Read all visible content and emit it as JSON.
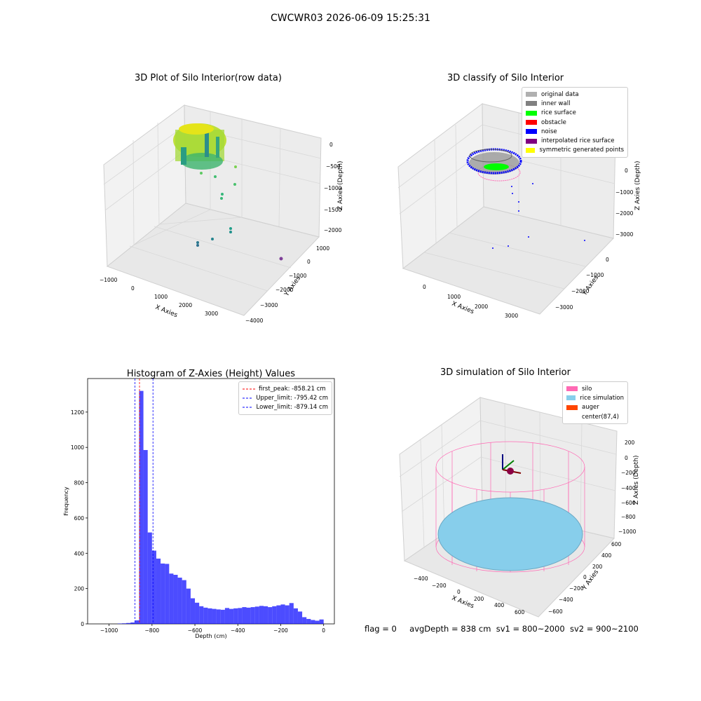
{
  "suptitle": "CWCWR03 2026-06-09 15:25:31",
  "panels": {
    "raw": {
      "title": "3D Plot of Silo Interior(row data)",
      "xlabel": "X Axies",
      "ylabel": "Y Axies",
      "zlabel": "Z Axies (Depth)",
      "xticks": [
        "−1000",
        "0",
        "1000",
        "2000",
        "3000"
      ],
      "yticks": [
        "1000",
        "0",
        "−1000",
        "−2000",
        "−3000",
        "−4000"
      ],
      "zticks": [
        "0",
        "−500",
        "−1000",
        "−1500",
        "−2000"
      ]
    },
    "classify": {
      "title": "3D classify of Silo Interior",
      "xlabel": "X Axies",
      "ylabel": "Y Axies",
      "zlabel": "Z Axies (Depth)",
      "xticks": [
        "0",
        "1000",
        "2000",
        "3000"
      ],
      "yticks": [
        "0",
        "−1000",
        "−2000",
        "−3000"
      ],
      "zticks": [
        "0",
        "−1000",
        "−2000",
        "−3000"
      ],
      "legend": [
        {
          "label": "original data",
          "color": "#b0b0b0"
        },
        {
          "label": "inner wall",
          "color": "#808080"
        },
        {
          "label": "rice surface",
          "color": "#00ff00"
        },
        {
          "label": "obstacle",
          "color": "#ff0000"
        },
        {
          "label": "noise",
          "color": "#0000ff"
        },
        {
          "label": "interpolated rice surface",
          "color": "#800080"
        },
        {
          "label": "symmetric generated points",
          "color": "#ffff00"
        }
      ]
    },
    "simulation": {
      "title": "3D simulation of Silo Interior",
      "xlabel": "X Axies",
      "ylabel": "Y Axies",
      "zlabel": "Z Axies (Depth)",
      "xticks": [
        "−400",
        "−200",
        "0",
        "200",
        "400",
        "600"
      ],
      "yticks": [
        "600",
        "400",
        "200",
        "0",
        "−200",
        "−400",
        "−600"
      ],
      "zticks": [
        "200",
        "0",
        "−200",
        "−400",
        "−600",
        "−800",
        "−1000"
      ],
      "legend": [
        {
          "label": "silo",
          "color": "#ff69b4"
        },
        {
          "label": "rice simulation",
          "color": "#87ceeb"
        },
        {
          "label": "auger",
          "color": "#ff4500"
        },
        {
          "label": "center(87,4)",
          "color": ""
        }
      ]
    }
  },
  "chart_data": {
    "type": "bar",
    "title": "Histogram of Z-Axies (Height) Values",
    "xlabel": "Depth (cm)",
    "ylabel": "Frequency",
    "xlim": [
      -1100,
      50
    ],
    "ylim": [
      0,
      1390
    ],
    "xticks": [
      -1000,
      -800,
      -600,
      -400,
      -200,
      0
    ],
    "yticks": [
      0,
      200,
      400,
      600,
      800,
      1000,
      1200
    ],
    "bin_width": 20,
    "bins_start": [
      -960,
      -940,
      -920,
      -900,
      -880,
      -860,
      -840,
      -820,
      -800,
      -780,
      -760,
      -740,
      -720,
      -700,
      -680,
      -660,
      -640,
      -620,
      -600,
      -580,
      -560,
      -540,
      -520,
      -500,
      -480,
      -460,
      -440,
      -420,
      -400,
      -380,
      -360,
      -340,
      -320,
      -300,
      -280,
      -260,
      -240,
      -220,
      -200,
      -180,
      -160,
      -140,
      -120,
      -100,
      -80,
      -60,
      -40,
      -20
    ],
    "values": [
      2,
      3,
      5,
      8,
      20,
      1320,
      985,
      518,
      415,
      370,
      342,
      340,
      285,
      278,
      262,
      248,
      200,
      145,
      120,
      100,
      92,
      88,
      85,
      82,
      80,
      90,
      85,
      88,
      90,
      95,
      92,
      95,
      98,
      102,
      100,
      95,
      100,
      105,
      110,
      105,
      118,
      88,
      70,
      38,
      28,
      22,
      18,
      25
    ],
    "vlines": [
      {
        "label": "first_peak: -858.21 cm",
        "x": -858.21,
        "color": "#ff0000"
      },
      {
        "label": "Upper_limit: -795.42 cm",
        "x": -795.42,
        "color": "#0000ff"
      },
      {
        "label": "Lower_limit: -879.14 cm",
        "x": -879.14,
        "color": "#0000ff"
      }
    ]
  },
  "status": {
    "flag": "flag = 0",
    "avg": "avgDepth = 838 cm",
    "sv1": "sv1 = 800~2000",
    "sv2": "sv2 = 900~2100"
  }
}
